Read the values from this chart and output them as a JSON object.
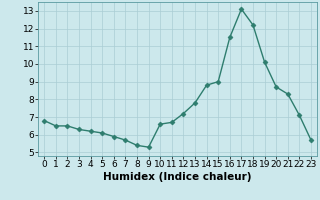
{
  "x": [
    0,
    1,
    2,
    3,
    4,
    5,
    6,
    7,
    8,
    9,
    10,
    11,
    12,
    13,
    14,
    15,
    16,
    17,
    18,
    19,
    20,
    21,
    22,
    23
  ],
  "y": [
    6.8,
    6.5,
    6.5,
    6.3,
    6.2,
    6.1,
    5.9,
    5.7,
    5.4,
    5.3,
    6.6,
    6.7,
    7.2,
    7.8,
    8.8,
    9.0,
    11.5,
    13.1,
    12.2,
    10.1,
    8.7,
    8.3,
    7.1,
    5.7
  ],
  "line_color": "#2e7d6e",
  "marker": "D",
  "marker_size": 2.5,
  "background_color": "#cce8ec",
  "grid_color": "#aacdd4",
  "xlabel": "Humidex (Indice chaleur)",
  "xlim": [
    -0.5,
    23.5
  ],
  "ylim": [
    4.8,
    13.5
  ],
  "xticks": [
    0,
    1,
    2,
    3,
    4,
    5,
    6,
    7,
    8,
    9,
    10,
    11,
    12,
    13,
    14,
    15,
    16,
    17,
    18,
    19,
    20,
    21,
    22,
    23
  ],
  "yticks": [
    5,
    6,
    7,
    8,
    9,
    10,
    11,
    12,
    13
  ],
  "tick_fontsize": 6.5,
  "xlabel_fontsize": 7.5,
  "linewidth": 1.0
}
